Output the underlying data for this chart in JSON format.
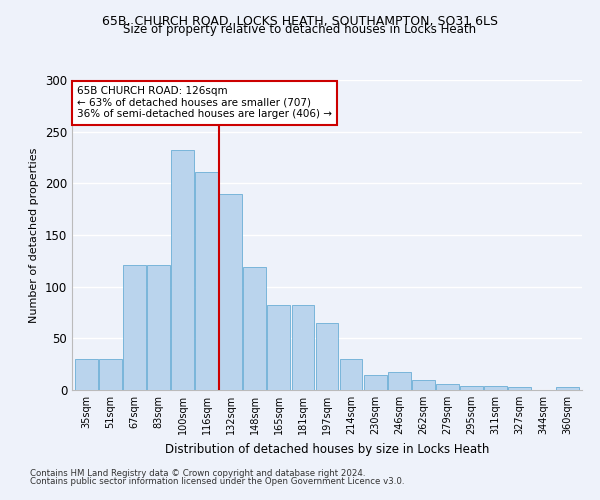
{
  "title1": "65B, CHURCH ROAD, LOCKS HEATH, SOUTHAMPTON, SO31 6LS",
  "title2": "Size of property relative to detached houses in Locks Heath",
  "xlabel": "Distribution of detached houses by size in Locks Heath",
  "ylabel": "Number of detached properties",
  "categories": [
    "35sqm",
    "51sqm",
    "67sqm",
    "83sqm",
    "100sqm",
    "116sqm",
    "132sqm",
    "148sqm",
    "165sqm",
    "181sqm",
    "197sqm",
    "214sqm",
    "230sqm",
    "246sqm",
    "262sqm",
    "279sqm",
    "295sqm",
    "311sqm",
    "327sqm",
    "344sqm",
    "360sqm"
  ],
  "bar_values": [
    30,
    30,
    121,
    121,
    232,
    211,
    190,
    119,
    82,
    82,
    65,
    30,
    15,
    17,
    10,
    6,
    4,
    4,
    3,
    0,
    3
  ],
  "bar_color": "#bad4ed",
  "bar_edge_color": "#6aaed6",
  "vline_x": 6,
  "vline_color": "#cc0000",
  "annotation_text": "65B CHURCH ROAD: 126sqm\n← 63% of detached houses are smaller (707)\n36% of semi-detached houses are larger (406) →",
  "annotation_box_color": "#ffffff",
  "annotation_box_edge": "#cc0000",
  "ylim": [
    0,
    300
  ],
  "yticks": [
    0,
    50,
    100,
    150,
    200,
    250,
    300
  ],
  "footer1": "Contains HM Land Registry data © Crown copyright and database right 2024.",
  "footer2": "Contains public sector information licensed under the Open Government Licence v3.0.",
  "bg_color": "#eef2fa",
  "plot_bg_color": "#eef2fa"
}
